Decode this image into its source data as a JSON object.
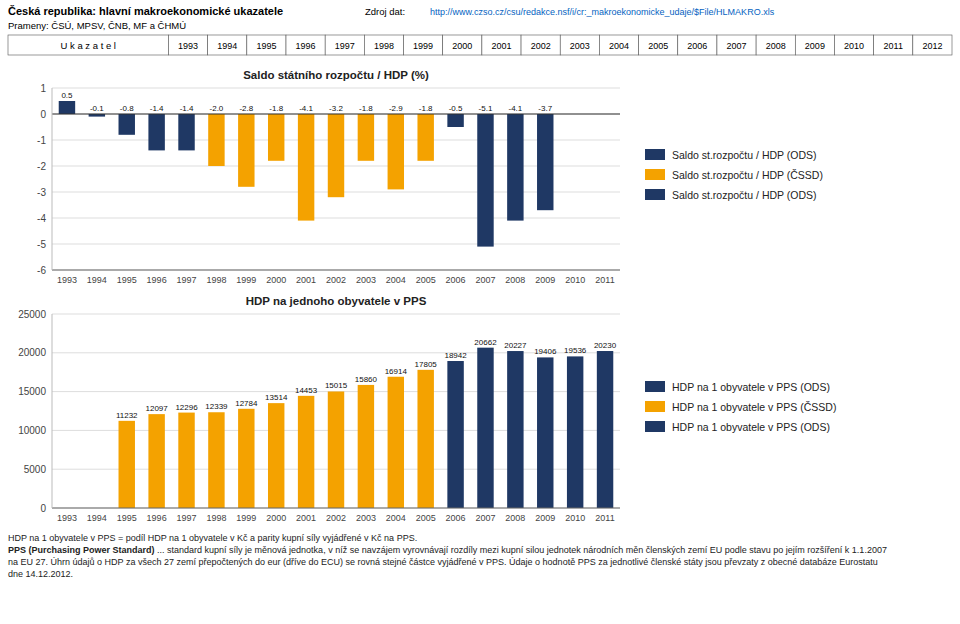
{
  "title": "Česká republika: hlavní makroekonomické ukazatele",
  "subtitle": "Prameny: ČSÚ, MPSV, ČNB, MF a ČHMÚ",
  "source_label": "Zdroj dat:",
  "source_url": "http://www.czso.cz/csu/redakce.nsf/i/cr:_makroekonomicke_udaje/$File/HLMAKRO.xls",
  "header": {
    "label": "U k a z a t e l",
    "years": [
      "1993",
      "1994",
      "1995",
      "1996",
      "1997",
      "1998",
      "1999",
      "2000",
      "2001",
      "2002",
      "2003",
      "2004",
      "2005",
      "2006",
      "2007",
      "2008",
      "2009",
      "2010",
      "2011",
      "2012"
    ]
  },
  "chart_data": [
    {
      "type": "bar",
      "title": "Saldo státního rozpočtu / HDP (%)",
      "categories": [
        "1993",
        "1994",
        "1995",
        "1996",
        "1997",
        "1998",
        "1999",
        "2000",
        "2001",
        "2002",
        "2003",
        "2004",
        "2005",
        "2006",
        "2007",
        "2008",
        "2009",
        "2010",
        "2011"
      ],
      "series": [
        {
          "name": "Saldo st.rozpočtu / HDP (ODS)",
          "color": "#1F3864",
          "values": [
            0.5,
            -0.1,
            -0.8,
            -1.4,
            -1.4,
            null,
            null,
            null,
            null,
            null,
            null,
            null,
            null,
            null,
            null,
            null,
            null,
            null,
            null
          ],
          "value_labels": [
            "0.5",
            "-0.1",
            "-0.8",
            "-1.4",
            "-1.4",
            null,
            null,
            null,
            null,
            null,
            null,
            null,
            null,
            null,
            null,
            null,
            null,
            null,
            null
          ]
        },
        {
          "name": "Saldo st.rozpočtu / HDP (ČSSD)",
          "color": "#F4A200",
          "values": [
            null,
            null,
            null,
            null,
            null,
            -2.0,
            -2.8,
            -1.8,
            -4.1,
            -3.2,
            -1.8,
            -2.9,
            -1.8,
            null,
            null,
            null,
            null,
            null,
            null
          ],
          "value_labels": [
            null,
            null,
            null,
            null,
            null,
            "-2.0",
            "-2.8",
            "-1.8",
            "-4.1",
            "-3.2",
            "-1.8",
            "-2.9",
            "-1.8",
            null,
            null,
            null,
            null,
            null,
            null
          ]
        },
        {
          "name": "Saldo st.rozpočtu / HDP (ODS)",
          "color": "#1F3864",
          "values": [
            null,
            null,
            null,
            null,
            null,
            null,
            null,
            null,
            null,
            null,
            null,
            null,
            null,
            -0.5,
            -5.1,
            -4.1,
            -3.7,
            null,
            null
          ],
          "value_labels": [
            null,
            null,
            null,
            null,
            null,
            null,
            null,
            null,
            null,
            null,
            null,
            null,
            null,
            "-0.5",
            "-5.1",
            "-4.1",
            "-3.7",
            null,
            null
          ]
        }
      ],
      "ylim": [
        -6,
        1
      ],
      "yticks": [
        -6,
        -5,
        -4,
        -3,
        -2,
        -1,
        0,
        1
      ],
      "grid": true,
      "legend": "right",
      "data_labels": true
    },
    {
      "type": "bar",
      "title": "HDP na jednoho obyvatele v PPS",
      "categories": [
        "1993",
        "1994",
        "1995",
        "1996",
        "1997",
        "1998",
        "1999",
        "2000",
        "2001",
        "2002",
        "2003",
        "2004",
        "2005",
        "2006",
        "2007",
        "2008",
        "2009",
        "2010",
        "2011"
      ],
      "series": [
        {
          "name": "HDP na 1 obyvatele v PPS (ODS)",
          "color": "#1F3864",
          "values": [
            null,
            null,
            null,
            null,
            null,
            null,
            null,
            null,
            null,
            null,
            null,
            null,
            null,
            null,
            null,
            null,
            null,
            null,
            null
          ]
        },
        {
          "name": "HDP na 1 obyvatele v PPS (ČSSD)",
          "color": "#F4A200",
          "values": [
            null,
            null,
            11232,
            12097,
            12296,
            12339,
            12784,
            13514,
            14453,
            15015,
            15860,
            16914,
            17805,
            null,
            null,
            null,
            null,
            null,
            null
          ]
        },
        {
          "name": "HDP na 1 obyvatele v PPS (ODS)",
          "color": "#1F3864",
          "values": [
            null,
            null,
            null,
            null,
            null,
            null,
            null,
            null,
            null,
            null,
            null,
            null,
            null,
            18942,
            20662,
            20227,
            19406,
            19536,
            20230
          ]
        }
      ],
      "ylim": [
        0,
        25000
      ],
      "yticks": [
        0,
        5000,
        10000,
        15000,
        20000,
        25000
      ],
      "grid": true,
      "legend": "right",
      "data_labels": true
    }
  ],
  "footnote1": "HDP na 1 obyvatele v PPS = podíl HDP na 1 obyvatele v Kč a parity kupní síly vyjádřené v Kč na PPS.",
  "footnote2_bold": "PPS (Purchasing Power Standard)",
  "footnote2_rest": " ... standard kupní síly je měnová jednotka, v níž se navzájem vyrovnávají rozdíly mezi kupní silou jednotek národních měn členských zemí EU podle stavu po jejím rozšíření k 1.1.2007",
  "footnote3": "na EU 27. Úhrn údajů o HDP za všech 27 zemí přepočtených do eur (dříve do ECU) se rovná stejné částce vyjádřené v PPS. Údaje o hodnotě PPS za jednotlivé členské státy jsou převzaty z obecné databáze Eurostatu",
  "footnote4": "dne 14.12.2012."
}
